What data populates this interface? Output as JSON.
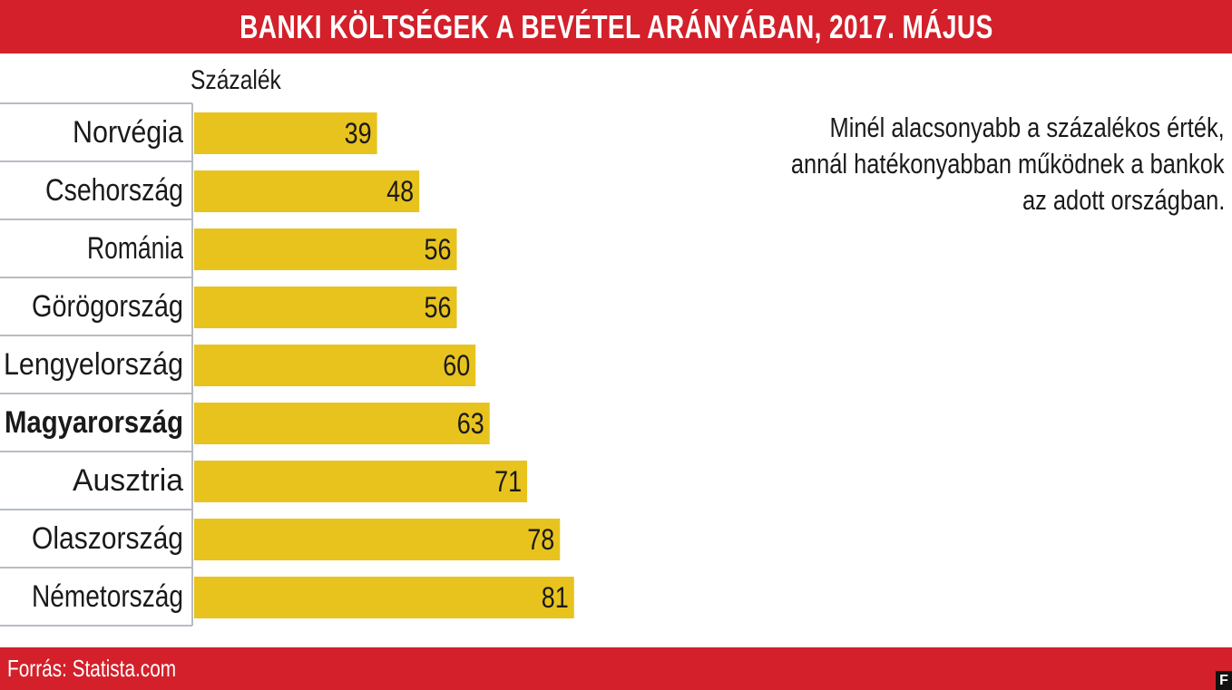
{
  "header": {
    "title": "BANKI KÖLTSÉGEK A BEVÉTEL ARÁNYÁBAN, 2017. MÁJUS"
  },
  "chart_data": {
    "type": "bar",
    "orientation": "horizontal",
    "title": "BANKI KÖLTSÉGEK A BEVÉTEL ARÁNYÁBAN, 2017. MÁJUS",
    "unit_label": "Százalék",
    "categories": [
      "Norvégia",
      "Csehország",
      "Románia",
      "Görögország",
      "Lengyelország",
      "Magyarország",
      "Ausztria",
      "Olaszország",
      "Németország"
    ],
    "values": [
      39,
      48,
      56,
      56,
      60,
      63,
      71,
      78,
      81
    ],
    "highlight_category": "Magyarország",
    "data_labels": true,
    "grid": false,
    "legend": "none",
    "bar_color": "#e8c31e"
  },
  "annotation": {
    "lines": [
      "Minél alacsonyabb a százalékos érték,",
      "annál hatékonyabban működnek a bankok",
      "az adott országban."
    ]
  },
  "footer": {
    "source": "Forrás: Statista.com",
    "logo": "F"
  },
  "colors": {
    "brand_red": "#d3202a",
    "bar": "#e8c31e",
    "text": "#1a1a1a",
    "divider": "#b7bcc4"
  }
}
